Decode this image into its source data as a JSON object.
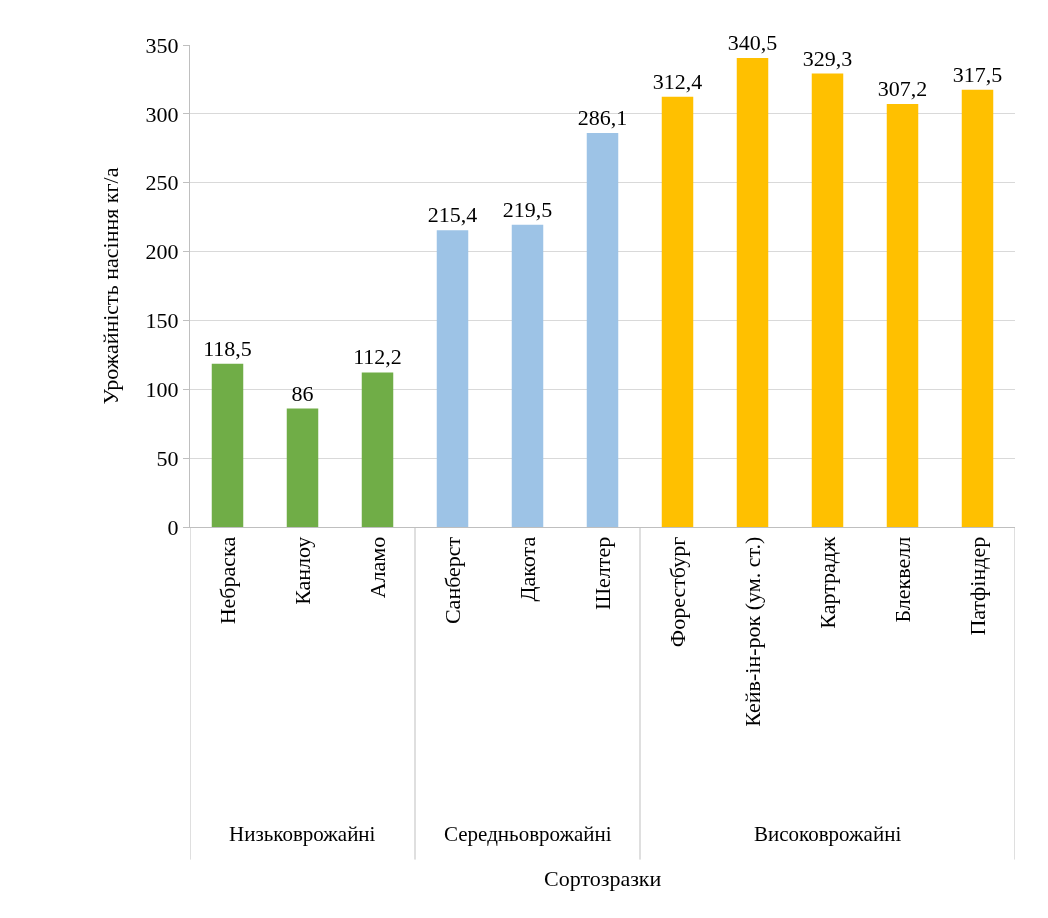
{
  "chart_data": {
    "type": "bar",
    "ylabel": "Урожайність насіння кг/а",
    "categories": [
      "Небраска",
      "Канлоу",
      "Аламо",
      "Санберст",
      "Дакота",
      "Шелтер",
      "Форестбург",
      "Кейв-ін-рок (ум. ст.)",
      "Картрадж",
      "Блеквелл",
      "Патфіндер"
    ],
    "values": [
      118.5,
      86,
      112.2,
      215.4,
      219.5,
      286.1,
      312.4,
      340.5,
      329.3,
      307.2,
      317.5
    ],
    "value_labels": [
      "118,5",
      "86",
      "112,2",
      "215,4",
      "219,5",
      "286,1",
      "312,4",
      "340,5",
      "329,3",
      "307,2",
      "317,5"
    ],
    "colors": [
      "#70ad47",
      "#70ad47",
      "#70ad47",
      "#9dc3e6",
      "#9dc3e6",
      "#9dc3e6",
      "#ffc000",
      "#ffc000",
      "#ffc000",
      "#ffc000",
      "#ffc000"
    ],
    "annotations": [
      "Низьковрожайні",
      "Середньоврожайні",
      "Високоврожайні",
      "Сортозразки"
    ],
    "ylim": [
      0,
      350
    ],
    "yticks": [
      0,
      50,
      100,
      150,
      200,
      250,
      300,
      350
    ],
    "grid": "y"
  }
}
